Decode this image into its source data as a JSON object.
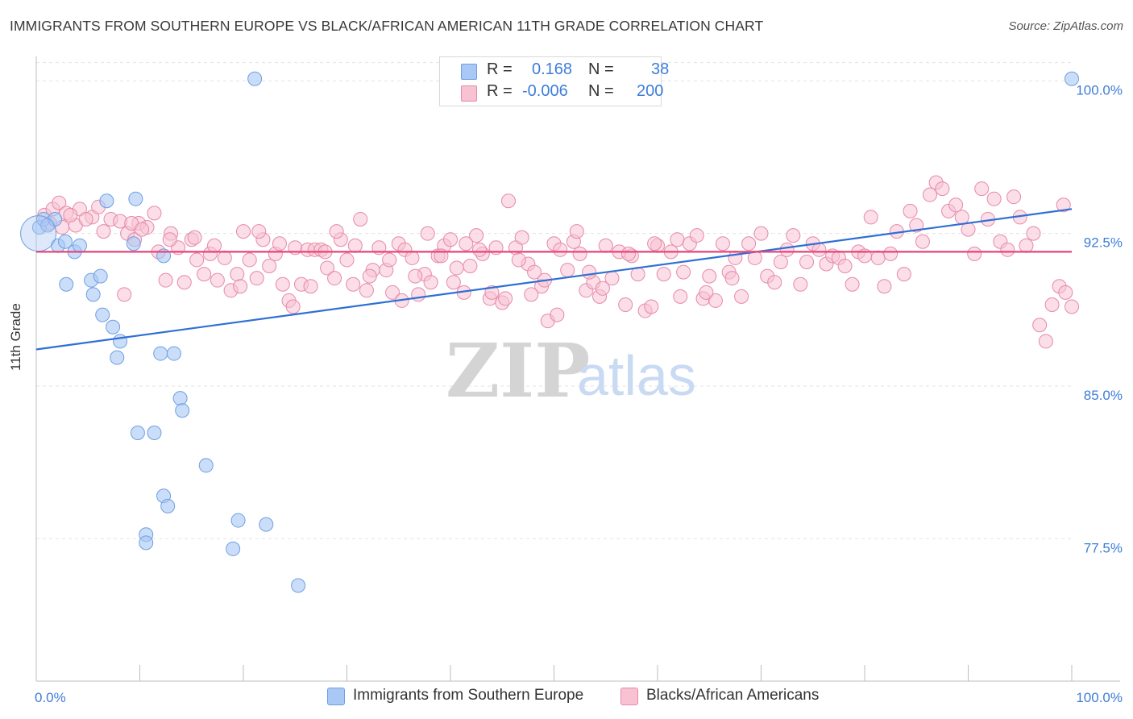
{
  "header": {
    "title": "IMMIGRANTS FROM SOUTHERN EUROPE VS BLACK/AFRICAN AMERICAN 11TH GRADE CORRELATION CHART",
    "source": "Source: ZipAtlas.com"
  },
  "legend": {
    "r_label": "R =",
    "n_label": "N =",
    "rows": [
      {
        "r": "0.168",
        "n": "38",
        "color": "#a9c8f5",
        "border": "#6f9fe0"
      },
      {
        "r": "-0.006",
        "n": "200",
        "color": "#f8c2d3",
        "border": "#e68aa8"
      }
    ]
  },
  "watermark": {
    "zip": "ZIP",
    "atlas": "atlas"
  },
  "colors": {
    "blue_fill": "#a9c8f5",
    "blue_stroke": "#6f9fe0",
    "blue_line": "#2f6fd4",
    "pink_fill": "#f8c2d3",
    "pink_stroke": "#e68aa8",
    "pink_line": "#e8457a",
    "tick_text": "#3d7dd8",
    "grid": "#e3e3e3"
  },
  "chart_data": {
    "type": "scatter",
    "title": "IMMIGRANTS FROM SOUTHERN EUROPE VS BLACK/AFRICAN AMERICAN 11TH GRADE CORRELATION CHART",
    "xlabel": "",
    "ylabel": "11th Grade",
    "xlim": [
      0,
      100
    ],
    "ylim": [
      70.5,
      101.2
    ],
    "x_tick_labels": [
      "0.0%",
      "100.0%"
    ],
    "y_ticks": [
      77.5,
      85.0,
      92.5,
      100.0
    ],
    "y_tick_labels": [
      "77.5%",
      "85.0%",
      "92.5%",
      "100.0%"
    ],
    "grid": true,
    "legend_position": "top-center",
    "series": [
      {
        "name": "Immigrants from Southern Europe",
        "r": 0.168,
        "n": 38,
        "trend": [
          [
            0,
            86.8
          ],
          [
            100,
            93.7
          ]
        ],
        "points": [
          [
            0.3,
            92.8
          ],
          [
            0.7,
            93.2
          ],
          [
            1.1,
            92.9
          ],
          [
            1.8,
            93.2
          ],
          [
            2.1,
            91.9
          ],
          [
            2.8,
            92.1
          ],
          [
            3.7,
            91.6
          ],
          [
            4.2,
            91.9
          ],
          [
            2.9,
            90.0
          ],
          [
            5.3,
            90.2
          ],
          [
            5.5,
            89.5
          ],
          [
            6.2,
            90.4
          ],
          [
            6.4,
            88.5
          ],
          [
            7.4,
            87.9
          ],
          [
            8.1,
            87.2
          ],
          [
            7.8,
            86.4
          ],
          [
            6.8,
            94.1
          ],
          [
            9.4,
            92.0
          ],
          [
            9.6,
            94.2
          ],
          [
            12.3,
            91.4
          ],
          [
            12.0,
            86.6
          ],
          [
            13.3,
            86.6
          ],
          [
            13.9,
            84.4
          ],
          [
            14.1,
            83.8
          ],
          [
            9.8,
            82.7
          ],
          [
            11.4,
            82.7
          ],
          [
            16.4,
            81.1
          ],
          [
            12.3,
            79.6
          ],
          [
            12.7,
            79.1
          ],
          [
            10.6,
            77.7
          ],
          [
            10.6,
            77.3
          ],
          [
            19.5,
            78.4
          ],
          [
            22.2,
            78.2
          ],
          [
            19.0,
            77.0
          ],
          [
            25.3,
            75.2
          ],
          [
            21.1,
            100.1
          ],
          [
            100.0,
            100.1
          ],
          [
            0.2,
            92.5
          ]
        ]
      },
      {
        "name": "Blacks/African Americans",
        "r": -0.006,
        "n": 200,
        "trend": [
          [
            0,
            91.6
          ],
          [
            100,
            91.6
          ]
        ],
        "points": [
          [
            0.8,
            93.4
          ],
          [
            1.6,
            93.7
          ],
          [
            2.2,
            94.0
          ],
          [
            2.9,
            93.5
          ],
          [
            3.8,
            92.9
          ],
          [
            4.2,
            93.7
          ],
          [
            5.4,
            93.3
          ],
          [
            6.5,
            92.6
          ],
          [
            7.2,
            93.2
          ],
          [
            8.1,
            93.1
          ],
          [
            8.8,
            92.5
          ],
          [
            9.5,
            92.2
          ],
          [
            9.9,
            93.0
          ],
          [
            10.7,
            92.8
          ],
          [
            11.4,
            93.5
          ],
          [
            11.8,
            91.6
          ],
          [
            12.5,
            90.2
          ],
          [
            13.0,
            92.5
          ],
          [
            13.7,
            91.8
          ],
          [
            14.3,
            90.1
          ],
          [
            15.0,
            92.2
          ],
          [
            15.5,
            91.2
          ],
          [
            16.2,
            90.5
          ],
          [
            16.8,
            91.5
          ],
          [
            17.5,
            90.2
          ],
          [
            18.2,
            91.3
          ],
          [
            18.8,
            89.7
          ],
          [
            19.4,
            90.5
          ],
          [
            20.0,
            92.6
          ],
          [
            20.6,
            91.2
          ],
          [
            21.3,
            90.3
          ],
          [
            21.9,
            92.2
          ],
          [
            22.5,
            90.9
          ],
          [
            23.1,
            91.5
          ],
          [
            23.8,
            90.0
          ],
          [
            24.4,
            89.2
          ],
          [
            25.0,
            91.8
          ],
          [
            25.6,
            90.0
          ],
          [
            26.2,
            91.7
          ],
          [
            26.9,
            91.7
          ],
          [
            27.5,
            91.7
          ],
          [
            28.1,
            90.8
          ],
          [
            28.8,
            90.3
          ],
          [
            29.4,
            92.2
          ],
          [
            30.0,
            91.2
          ],
          [
            30.6,
            90.0
          ],
          [
            31.3,
            93.2
          ],
          [
            31.9,
            89.7
          ],
          [
            32.5,
            90.7
          ],
          [
            33.1,
            91.8
          ],
          [
            33.8,
            90.7
          ],
          [
            34.4,
            89.6
          ],
          [
            35.0,
            92.0
          ],
          [
            35.6,
            91.7
          ],
          [
            36.3,
            91.3
          ],
          [
            36.9,
            89.5
          ],
          [
            37.5,
            90.5
          ],
          [
            38.1,
            90.1
          ],
          [
            38.8,
            91.4
          ],
          [
            39.4,
            91.9
          ],
          [
            40.0,
            92.2
          ],
          [
            40.6,
            90.8
          ],
          [
            41.3,
            89.6
          ],
          [
            41.9,
            90.9
          ],
          [
            42.5,
            92.4
          ],
          [
            43.1,
            91.5
          ],
          [
            43.8,
            89.3
          ],
          [
            44.4,
            91.8
          ],
          [
            45.0,
            89.1
          ],
          [
            45.6,
            94.1
          ],
          [
            46.3,
            91.8
          ],
          [
            46.9,
            92.3
          ],
          [
            47.5,
            91.0
          ],
          [
            48.1,
            90.6
          ],
          [
            48.8,
            89.9
          ],
          [
            49.4,
            88.2
          ],
          [
            50.0,
            92.0
          ],
          [
            50.6,
            91.7
          ],
          [
            51.3,
            90.7
          ],
          [
            51.9,
            92.1
          ],
          [
            52.5,
            91.5
          ],
          [
            53.1,
            89.7
          ],
          [
            53.8,
            90.1
          ],
          [
            54.4,
            89.4
          ],
          [
            55.0,
            91.9
          ],
          [
            55.6,
            90.3
          ],
          [
            56.3,
            91.6
          ],
          [
            56.9,
            89.0
          ],
          [
            57.5,
            91.4
          ],
          [
            58.1,
            90.5
          ],
          [
            58.8,
            88.7
          ],
          [
            59.4,
            88.9
          ],
          [
            60.0,
            91.9
          ],
          [
            60.6,
            90.5
          ],
          [
            61.3,
            91.6
          ],
          [
            61.9,
            92.2
          ],
          [
            62.5,
            90.6
          ],
          [
            63.1,
            92.0
          ],
          [
            63.8,
            92.4
          ],
          [
            64.4,
            89.3
          ],
          [
            65.0,
            90.4
          ],
          [
            65.6,
            89.2
          ],
          [
            66.3,
            92.0
          ],
          [
            66.9,
            90.6
          ],
          [
            67.5,
            91.3
          ],
          [
            68.1,
            89.4
          ],
          [
            68.8,
            92.0
          ],
          [
            69.4,
            91.3
          ],
          [
            70.0,
            92.5
          ],
          [
            70.6,
            90.4
          ],
          [
            71.3,
            90.1
          ],
          [
            71.9,
            91.1
          ],
          [
            72.5,
            91.7
          ],
          [
            73.1,
            92.4
          ],
          [
            73.8,
            90.0
          ],
          [
            74.4,
            91.1
          ],
          [
            75.0,
            92.0
          ],
          [
            75.6,
            91.7
          ],
          [
            76.3,
            91.0
          ],
          [
            76.9,
            91.4
          ],
          [
            77.5,
            91.3
          ],
          [
            78.1,
            90.9
          ],
          [
            78.8,
            90.0
          ],
          [
            79.4,
            91.6
          ],
          [
            80.0,
            91.4
          ],
          [
            80.6,
            93.3
          ],
          [
            81.3,
            91.3
          ],
          [
            81.9,
            89.9
          ],
          [
            82.5,
            91.5
          ],
          [
            83.1,
            92.6
          ],
          [
            83.8,
            90.5
          ],
          [
            84.4,
            93.6
          ],
          [
            85.0,
            92.9
          ],
          [
            85.6,
            92.1
          ],
          [
            86.3,
            94.4
          ],
          [
            86.9,
            95.0
          ],
          [
            87.5,
            94.7
          ],
          [
            88.1,
            93.6
          ],
          [
            88.8,
            93.9
          ],
          [
            89.4,
            93.3
          ],
          [
            90.0,
            92.7
          ],
          [
            90.6,
            91.5
          ],
          [
            91.3,
            94.7
          ],
          [
            91.9,
            93.2
          ],
          [
            92.5,
            94.2
          ],
          [
            93.1,
            92.1
          ],
          [
            93.8,
            91.7
          ],
          [
            94.4,
            94.3
          ],
          [
            95.0,
            93.3
          ],
          [
            95.6,
            91.9
          ],
          [
            96.3,
            92.5
          ],
          [
            96.9,
            88.0
          ],
          [
            97.5,
            87.2
          ],
          [
            98.1,
            89.0
          ],
          [
            98.8,
            89.9
          ],
          [
            99.4,
            89.6
          ],
          [
            100.0,
            88.9
          ],
          [
            99.2,
            93.9
          ],
          [
            1.3,
            93.0
          ],
          [
            2.5,
            92.8
          ],
          [
            3.3,
            93.4
          ],
          [
            4.8,
            93.2
          ],
          [
            6.0,
            93.8
          ],
          [
            8.5,
            89.5
          ],
          [
            9.2,
            93.0
          ],
          [
            10.2,
            92.7
          ],
          [
            12.9,
            92.2
          ],
          [
            15.3,
            92.3
          ],
          [
            17.2,
            91.9
          ],
          [
            19.7,
            89.9
          ],
          [
            21.5,
            92.6
          ],
          [
            23.5,
            92.0
          ],
          [
            24.8,
            88.9
          ],
          [
            26.5,
            89.9
          ],
          [
            27.9,
            91.6
          ],
          [
            29.0,
            92.6
          ],
          [
            30.8,
            91.9
          ],
          [
            32.2,
            90.4
          ],
          [
            34.1,
            91.2
          ],
          [
            35.3,
            89.2
          ],
          [
            36.6,
            90.4
          ],
          [
            37.8,
            92.5
          ],
          [
            39.1,
            91.4
          ],
          [
            40.3,
            90.1
          ],
          [
            41.5,
            92.0
          ],
          [
            42.8,
            91.7
          ],
          [
            44.0,
            89.6
          ],
          [
            45.3,
            89.3
          ],
          [
            46.6,
            91.2
          ],
          [
            47.8,
            89.5
          ],
          [
            49.1,
            90.2
          ],
          [
            50.3,
            88.5
          ],
          [
            52.2,
            92.6
          ],
          [
            53.4,
            90.6
          ],
          [
            54.7,
            89.8
          ],
          [
            57.2,
            91.5
          ],
          [
            59.7,
            92.0
          ],
          [
            62.2,
            89.4
          ],
          [
            64.7,
            89.6
          ],
          [
            67.2,
            90.3
          ]
        ]
      }
    ]
  },
  "bottom_legend": [
    {
      "label": "Immigrants from Southern Europe"
    },
    {
      "label": "Blacks/African Americans"
    }
  ]
}
